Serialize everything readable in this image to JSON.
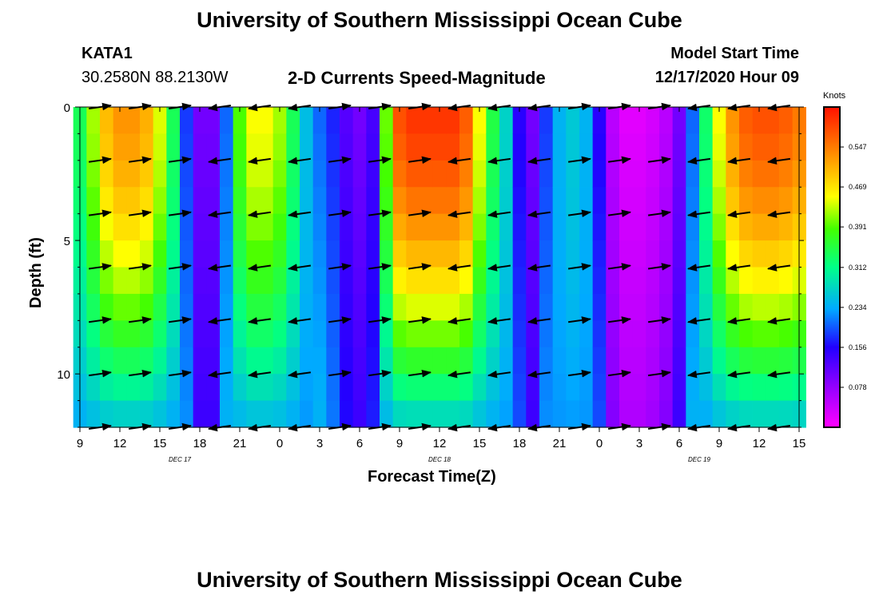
{
  "header": {
    "title": "University of Southern Mississippi Ocean Cube",
    "footer_title": "University of Southern Mississippi Ocean Cube",
    "station_id": "KATA1",
    "coordinates": "30.2580N 88.2130W",
    "plot_title": "2-D Currents Speed-Magnitude",
    "model_label": "Model Start Time",
    "model_time": "12/17/2020 Hour 09"
  },
  "colors": {
    "scale": [
      "#ff00ff",
      "#cc00ff",
      "#8800ff",
      "#3300ff",
      "#0044ff",
      "#00aaff",
      "#00ffee",
      "#00ff66",
      "#22ff00",
      "#aaff00",
      "#ffff00",
      "#ffcc00",
      "#ff9900",
      "#ff6600",
      "#ff2200"
    ],
    "arrow": "#000000"
  },
  "chart_data": {
    "type": "heatmap",
    "title": "2-D Currents Speed-Magnitude",
    "xlabel": "Forecast Time(Z)",
    "ylabel": "Depth (ft)",
    "x_ticks": [
      "9",
      "12",
      "15",
      "18",
      "21",
      "0",
      "3",
      "6",
      "9",
      "12",
      "15",
      "18",
      "21",
      "0",
      "3",
      "6",
      "9",
      "12",
      "15"
    ],
    "x_hours": [
      0,
      3,
      6,
      9,
      12,
      15,
      18,
      21,
      24,
      27,
      30,
      33,
      36,
      39,
      42,
      45,
      48,
      51,
      54
    ],
    "dates": [
      {
        "label": "DEC 17",
        "hour": 7.5
      },
      {
        "label": "DEC 18",
        "hour": 27
      },
      {
        "label": "DEC 19",
        "hour": 46.5
      }
    ],
    "xlim": [
      0,
      54
    ],
    "y_ticks": [
      "0",
      "5",
      "10"
    ],
    "y_tick_values": [
      0,
      5,
      10
    ],
    "ylim": [
      0,
      12
    ],
    "depths": [
      0,
      1,
      2,
      3,
      4,
      5,
      6,
      7,
      8,
      9,
      10,
      11,
      12
    ],
    "colorbar": {
      "label": "Knots",
      "range": [
        0,
        0.625
      ],
      "ticks": [
        "0.547",
        "0.469",
        "0.391",
        "0.312",
        "0.234",
        "0.156",
        "0.078"
      ],
      "tick_values": [
        0.547,
        0.469,
        0.391,
        0.312,
        0.234,
        0.156,
        0.078
      ]
    },
    "speed_profile_hours": [
      0,
      1,
      2,
      3,
      4,
      5,
      6,
      7,
      8,
      9,
      10,
      11,
      12,
      13,
      14,
      15,
      16,
      17,
      18,
      19,
      20,
      21,
      22,
      23,
      24,
      25,
      26,
      27,
      28,
      29,
      30,
      31,
      32,
      33,
      34,
      35,
      36,
      37,
      38,
      39,
      40,
      41,
      42,
      43,
      44,
      45,
      46,
      47,
      48,
      49,
      50,
      51,
      52,
      53,
      54
    ],
    "speed_surface_knots": [
      0.34,
      0.42,
      0.5,
      0.53,
      0.53,
      0.51,
      0.44,
      0.34,
      0.18,
      0.1,
      0.1,
      0.2,
      0.39,
      0.45,
      0.45,
      0.42,
      0.34,
      0.25,
      0.2,
      0.17,
      0.12,
      0.1,
      0.13,
      0.4,
      0.58,
      0.6,
      0.6,
      0.6,
      0.6,
      0.57,
      0.45,
      0.35,
      0.27,
      0.15,
      0.1,
      0.18,
      0.24,
      0.26,
      0.24,
      0.15,
      0.05,
      0.02,
      0.02,
      0.03,
      0.05,
      0.1,
      0.2,
      0.33,
      0.45,
      0.53,
      0.57,
      0.58,
      0.58,
      0.57,
      0.55
    ],
    "vectors_depth_ft": [
      0,
      2,
      4,
      6,
      8,
      10,
      12
    ],
    "vectors_time_hours": [
      1.5,
      4.5,
      7.5,
      10.5,
      13.5,
      16.5,
      19.5,
      22.5,
      25.5,
      28.5,
      31.5,
      34.5,
      37.5,
      40.5,
      43.5,
      46.5,
      49.5,
      52.5
    ]
  }
}
